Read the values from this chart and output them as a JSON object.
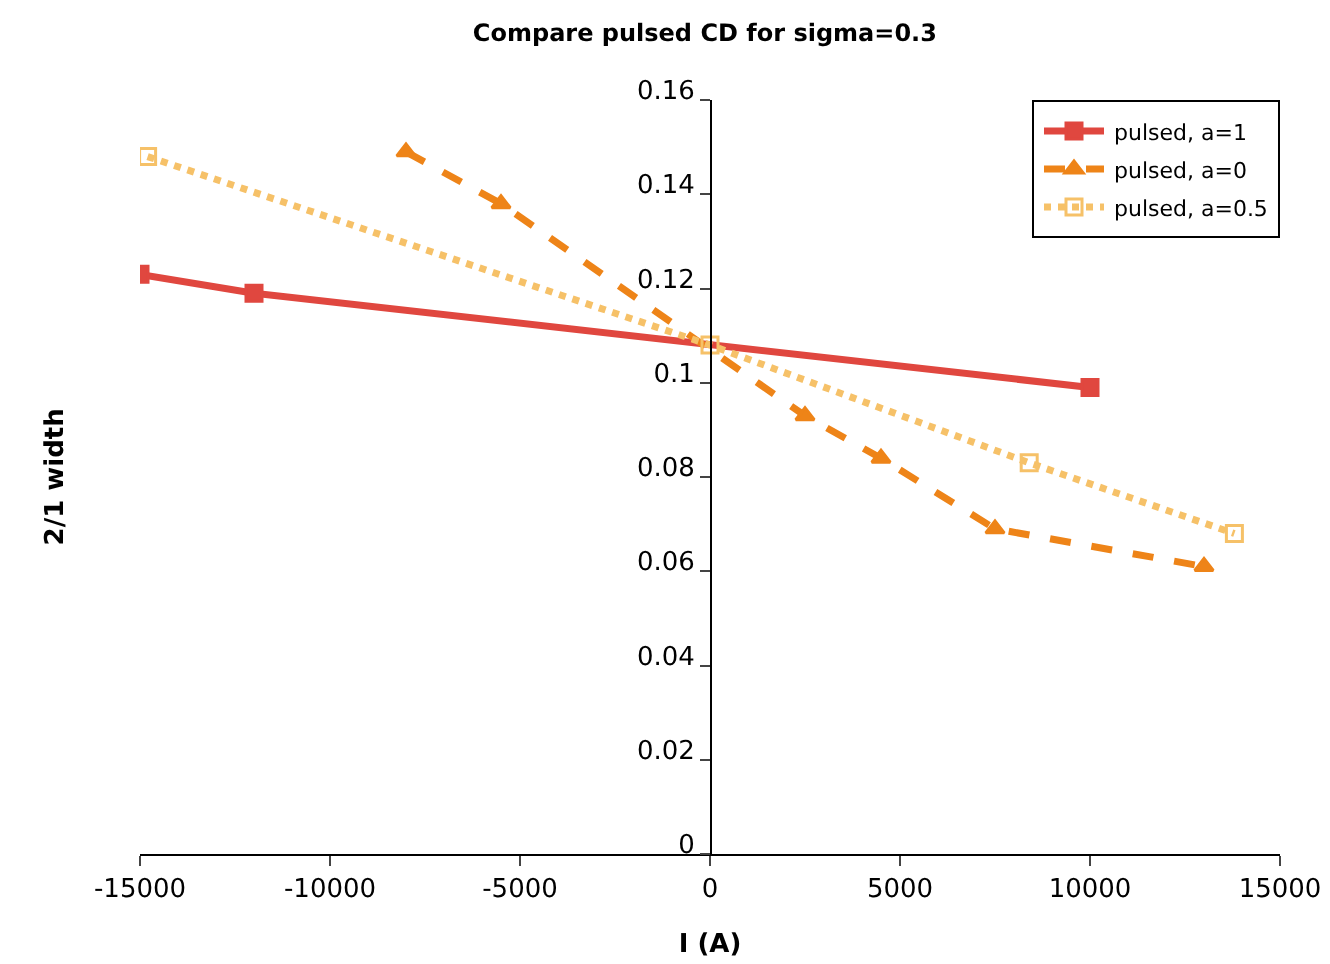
{
  "chart_data": {
    "type": "line",
    "title": "Compare pulsed CD for sigma=0.3",
    "xlabel": "I (A)",
    "ylabel": "2/1 width",
    "xlim": [
      -15000,
      15000
    ],
    "xticks": [
      -15000,
      -10000,
      -5000,
      0,
      5000,
      10000,
      15000
    ],
    "ylim": [
      0,
      0.16
    ],
    "yticks": [
      0,
      0.02,
      0.04,
      0.06,
      0.08,
      0.1,
      0.12,
      0.14,
      0.16
    ],
    "grid": false,
    "legend": "top right",
    "series": [
      {
        "name": "pulsed, a=1",
        "color": "#e0473f",
        "marker": "square",
        "line_style": "solid",
        "x": [
          -15000,
          -12000,
          10000
        ],
        "values": [
          0.123,
          0.119,
          0.099
        ]
      },
      {
        "name": "pulsed, a=0",
        "color": "#ee8418",
        "marker": "triangle",
        "line_style": "dashed",
        "x": [
          -8000,
          -5500,
          2500,
          4500,
          7500,
          13000
        ],
        "values": [
          0.149,
          0.138,
          0.093,
          0.084,
          0.069,
          0.061
        ]
      },
      {
        "name": "pulsed, a=0.5",
        "color": "#f6c168",
        "marker": "square-open",
        "line_style": "dotted",
        "x": [
          -14800,
          0,
          8400,
          13800
        ],
        "values": [
          0.148,
          0.108,
          0.083,
          0.068
        ]
      }
    ]
  }
}
